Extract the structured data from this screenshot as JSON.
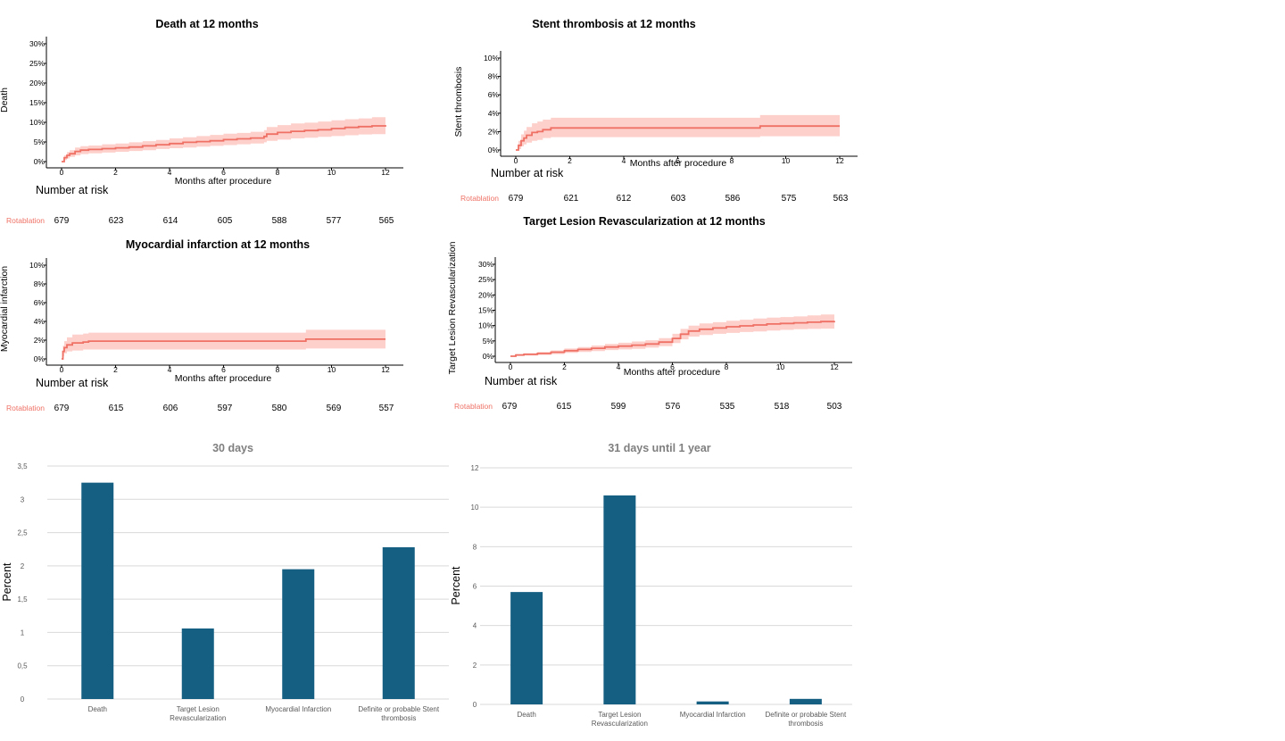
{
  "colors": {
    "km_line": "#ef7165",
    "km_band": "#fdd0cc",
    "risk_label": "#ef7165",
    "bar": "#155f82",
    "bar_title": "#7f7f7f",
    "grid": "#d9d9d9"
  },
  "chart_data": [
    {
      "id": "km-death",
      "type": "line",
      "title": "Death at 12 months",
      "xlabel": "Months after procedure",
      "ylabel": "Death",
      "xlim": [
        0,
        12
      ],
      "ylim": [
        0,
        30
      ],
      "x_ticks": [
        "0",
        "2",
        "4",
        "6",
        "8",
        "10",
        "12"
      ],
      "y_ticks": [
        "0%",
        "5%",
        "10%",
        "15%",
        "20%",
        "25%",
        "30%"
      ],
      "series": [
        {
          "x": [
            0,
            0.1,
            0.2,
            0.3,
            0.5,
            0.7,
            1,
            1.5,
            2,
            2.5,
            3,
            3.5,
            4,
            4.5,
            5,
            5.5,
            6,
            6.5,
            7,
            7.5,
            7.6,
            8,
            8.5,
            9,
            9.5,
            10,
            10.5,
            11,
            11.5,
            12
          ],
          "y": [
            0,
            1.0,
            1.6,
            2.0,
            2.6,
            2.9,
            3.1,
            3.3,
            3.5,
            3.7,
            4.0,
            4.3,
            4.6,
            4.9,
            5.1,
            5.3,
            5.6,
            5.8,
            6.0,
            6.4,
            7.0,
            7.4,
            7.7,
            7.9,
            8.1,
            8.4,
            8.7,
            8.9,
            9.1,
            9.3
          ],
          "lower": [
            0,
            0.4,
            0.8,
            1.2,
            1.6,
            1.9,
            2.1,
            2.3,
            2.5,
            2.7,
            2.9,
            3.2,
            3.4,
            3.6,
            3.8,
            4.0,
            4.2,
            4.4,
            4.6,
            4.9,
            5.3,
            5.6,
            5.9,
            6.1,
            6.3,
            6.5,
            6.7,
            6.9,
            7.0,
            7.2
          ],
          "upper": [
            0,
            1.6,
            2.4,
            2.9,
            3.6,
            3.9,
            4.1,
            4.4,
            4.6,
            4.9,
            5.2,
            5.5,
            5.9,
            6.2,
            6.5,
            6.8,
            7.1,
            7.3,
            7.6,
            8.0,
            8.8,
            9.3,
            9.7,
            9.9,
            10.2,
            10.5,
            10.8,
            11.0,
            11.3,
            11.5
          ]
        }
      ],
      "risk_title": "Number at risk",
      "risk_label": "Rotablation",
      "risk": [
        "679",
        "623",
        "614",
        "605",
        "588",
        "577",
        "565"
      ]
    },
    {
      "id": "km-st",
      "type": "line",
      "title": "Stent thrombosis at 12 months",
      "xlabel": "Months after procedure",
      "ylabel": "Stent thrombosis",
      "xlim": [
        0,
        12
      ],
      "ylim": [
        0,
        10
      ],
      "x_ticks": [
        "0",
        "2",
        "4",
        "6",
        "8",
        "10",
        "12"
      ],
      "y_ticks": [
        "0%",
        "2%",
        "4%",
        "6%",
        "8%",
        "10%"
      ],
      "series": [
        {
          "x": [
            0,
            0.1,
            0.2,
            0.3,
            0.4,
            0.6,
            0.8,
            1.0,
            1.3,
            2,
            4,
            6,
            8,
            9,
            9.05,
            12
          ],
          "y": [
            0,
            0.5,
            1.0,
            1.3,
            1.6,
            1.9,
            2.0,
            2.2,
            2.4,
            2.4,
            2.4,
            2.4,
            2.4,
            2.4,
            2.6,
            2.6
          ],
          "lower": [
            0,
            0.1,
            0.4,
            0.6,
            0.8,
            1.0,
            1.1,
            1.3,
            1.4,
            1.4,
            1.4,
            1.4,
            1.4,
            1.4,
            1.5,
            1.5
          ],
          "upper": [
            0,
            1.0,
            1.7,
            2.1,
            2.5,
            2.9,
            3.1,
            3.3,
            3.5,
            3.5,
            3.5,
            3.5,
            3.5,
            3.5,
            3.8,
            3.8
          ]
        }
      ],
      "risk_title": "Number at risk",
      "risk_label": "Rotablation",
      "risk": [
        "679",
        "621",
        "612",
        "603",
        "586",
        "575",
        "563"
      ]
    },
    {
      "id": "km-mi",
      "type": "line",
      "title": "Myocardial infarction at 12 months",
      "xlabel": "Months after procedure",
      "ylabel": "Myocardial infarction",
      "xlim": [
        0,
        12
      ],
      "ylim": [
        0,
        10
      ],
      "x_ticks": [
        "0",
        "2",
        "4",
        "6",
        "8",
        "10",
        "12"
      ],
      "y_ticks": [
        "0%",
        "2%",
        "4%",
        "6%",
        "8%",
        "10%"
      ],
      "series": [
        {
          "x": [
            0,
            0.05,
            0.1,
            0.2,
            0.4,
            0.8,
            1.0,
            2,
            4,
            6,
            8,
            9,
            9.05,
            12
          ],
          "y": [
            0,
            0.8,
            1.2,
            1.5,
            1.7,
            1.8,
            1.9,
            1.9,
            1.9,
            1.9,
            1.9,
            1.9,
            2.1,
            2.1
          ],
          "lower": [
            0,
            0.3,
            0.6,
            0.8,
            0.9,
            1.0,
            1.0,
            1.0,
            1.0,
            1.0,
            1.0,
            1.0,
            1.1,
            1.1
          ],
          "upper": [
            0,
            1.4,
            1.9,
            2.3,
            2.6,
            2.7,
            2.8,
            2.8,
            2.8,
            2.8,
            2.8,
            2.8,
            3.1,
            3.1
          ]
        }
      ],
      "risk_title": "Number at risk",
      "risk_label": "Rotablation",
      "risk": [
        "679",
        "615",
        "606",
        "597",
        "580",
        "569",
        "557"
      ]
    },
    {
      "id": "km-tlr",
      "type": "line",
      "title": "Target Lesion Revascularization at 12 months",
      "xlabel": "Months after procedure",
      "ylabel": "Target Lesion Revascularization",
      "xlim": [
        0,
        12
      ],
      "ylim": [
        0,
        30
      ],
      "x_ticks": [
        "0",
        "2",
        "4",
        "6",
        "8",
        "10",
        "12"
      ],
      "y_ticks": [
        "0%",
        "5%",
        "10%",
        "15%",
        "20%",
        "25%",
        "30%"
      ],
      "series": [
        {
          "x": [
            0,
            0.2,
            0.5,
            1,
            1.5,
            2,
            2.5,
            3,
            3.5,
            4,
            4.5,
            5,
            5.5,
            6,
            6.3,
            6.6,
            7,
            7.5,
            8,
            8.5,
            9,
            9.5,
            10,
            10.5,
            11,
            11.5,
            12
          ],
          "y": [
            0,
            0.4,
            0.6,
            0.9,
            1.3,
            1.8,
            2.2,
            2.6,
            3.0,
            3.3,
            3.6,
            4.0,
            4.6,
            5.8,
            7.2,
            8.2,
            8.8,
            9.2,
            9.6,
            9.9,
            10.2,
            10.5,
            10.7,
            10.9,
            11.1,
            11.3,
            11.5
          ],
          "lower": [
            0,
            0.1,
            0.2,
            0.4,
            0.7,
            1.1,
            1.4,
            1.7,
            2.0,
            2.2,
            2.4,
            2.8,
            3.3,
            4.3,
            5.5,
            6.4,
            6.9,
            7.3,
            7.6,
            7.9,
            8.1,
            8.4,
            8.6,
            8.8,
            8.9,
            9.0,
            9.1
          ],
          "upper": [
            0,
            0.7,
            1.0,
            1.4,
            1.9,
            2.5,
            3.0,
            3.5,
            4.0,
            4.4,
            4.8,
            5.2,
            5.9,
            7.3,
            8.9,
            10.0,
            10.7,
            11.1,
            11.6,
            11.9,
            12.3,
            12.6,
            12.8,
            13.0,
            13.3,
            13.6,
            13.9
          ]
        }
      ],
      "risk_title": "Number at risk",
      "risk_label": "Rotablation",
      "risk": [
        "679",
        "615",
        "599",
        "576",
        "535",
        "518",
        "503"
      ]
    },
    {
      "id": "bar-30d",
      "type": "bar",
      "title": "30 days",
      "ylabel": "Percent",
      "categories": [
        "Death",
        "Target Lesion Revascularization",
        "Myocardial Infarction",
        "Definite or probable Stent thrombosis"
      ],
      "category_lines": [
        [
          "Death"
        ],
        [
          "Target Lesion",
          "Revascularization"
        ],
        [
          "Myocardial Infarction"
        ],
        [
          "Definite or probable Stent",
          "thrombosis"
        ]
      ],
      "values": [
        3.25,
        1.06,
        1.95,
        2.28
      ],
      "ylim": [
        0,
        3.5
      ],
      "y_ticks": [
        "0",
        "0,5",
        "1",
        "1,5",
        "2",
        "2,5",
        "3",
        "3,5"
      ],
      "grid": true
    },
    {
      "id": "bar-1y",
      "type": "bar",
      "title": "31 days until 1 year",
      "ylabel": "Percent",
      "categories": [
        "Death",
        "Target Lesion Revascularization",
        "Myocardial Infarction",
        "Definite or probable Stent thrombosis"
      ],
      "category_lines": [
        [
          "Death"
        ],
        [
          "Target Lesion",
          "Revascularization"
        ],
        [
          "Myocardial Infarction"
        ],
        [
          "Definite or probable Stent",
          "thrombosis"
        ]
      ],
      "values": [
        5.7,
        10.6,
        0.15,
        0.28
      ],
      "ylim": [
        0,
        12
      ],
      "y_ticks": [
        "0",
        "2",
        "4",
        "6",
        "8",
        "10",
        "12"
      ],
      "grid": true
    }
  ]
}
